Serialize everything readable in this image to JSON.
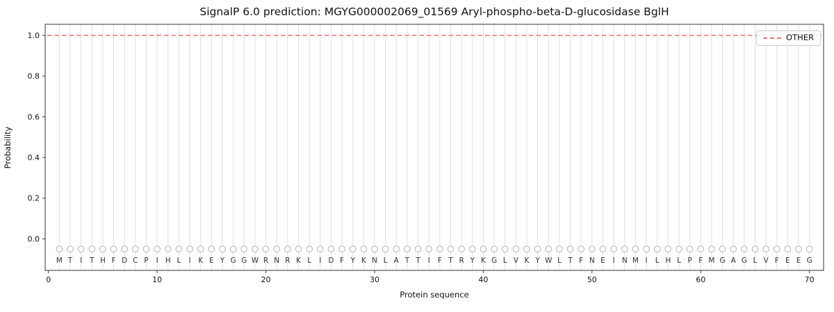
{
  "chart_data": {
    "type": "line",
    "title": "SignalP 6.0 prediction: MGYG000002069_01569 Aryl-phospho-beta-D-glucosidase BglH",
    "xlabel": "Protein sequence",
    "ylabel": "Probability",
    "xlim": [
      -0.3,
      71.3
    ],
    "ylim": [
      -0.155,
      1.055
    ],
    "xticks": [
      0,
      10,
      20,
      30,
      40,
      50,
      60,
      70
    ],
    "yticks": [
      0.0,
      0.2,
      0.4,
      0.6,
      0.8,
      1.0
    ],
    "grid": "light vertical gridline at each residue position",
    "legend": {
      "position": "upper-right",
      "entries": [
        {
          "label": "OTHER",
          "color": "#f07070",
          "linestyle": "dashed"
        }
      ]
    },
    "sequence": "MTITHFDCPIHLIKEYGGWRNRKLIDFYKNLATTIFTRYKGLVKYWLTFNEINMILHLPFMGAGLVFEEG",
    "residue_positions_start": 1,
    "residue_marker_y": -0.05,
    "residue_letter_y": -0.105,
    "series": [
      {
        "name": "OTHER",
        "x_start": 1,
        "values": [
          1.0,
          1.0,
          1.0,
          1.0,
          1.0,
          1.0,
          1.0,
          1.0,
          1.0,
          1.0,
          1.0,
          1.0,
          1.0,
          1.0,
          1.0,
          1.0,
          1.0,
          1.0,
          1.0,
          1.0,
          1.0,
          1.0,
          1.0,
          1.0,
          1.0,
          1.0,
          1.0,
          1.0,
          1.0,
          1.0,
          1.0,
          1.0,
          1.0,
          1.0,
          1.0,
          1.0,
          1.0,
          1.0,
          1.0,
          1.0,
          1.0,
          1.0,
          1.0,
          1.0,
          1.0,
          1.0,
          1.0,
          1.0,
          1.0,
          1.0,
          1.0,
          1.0,
          1.0,
          1.0,
          1.0,
          1.0,
          1.0,
          1.0,
          1.0,
          1.0,
          1.0,
          1.0,
          1.0,
          1.0,
          1.0,
          1.0,
          1.0,
          1.0,
          1.0,
          1.0
        ]
      }
    ],
    "colors": {
      "other_line": "#f07070",
      "grid": "#dcdcdc",
      "marker": "#b3b3b3",
      "spine": "#333333",
      "text": "#111111",
      "letter": "#333333"
    }
  }
}
